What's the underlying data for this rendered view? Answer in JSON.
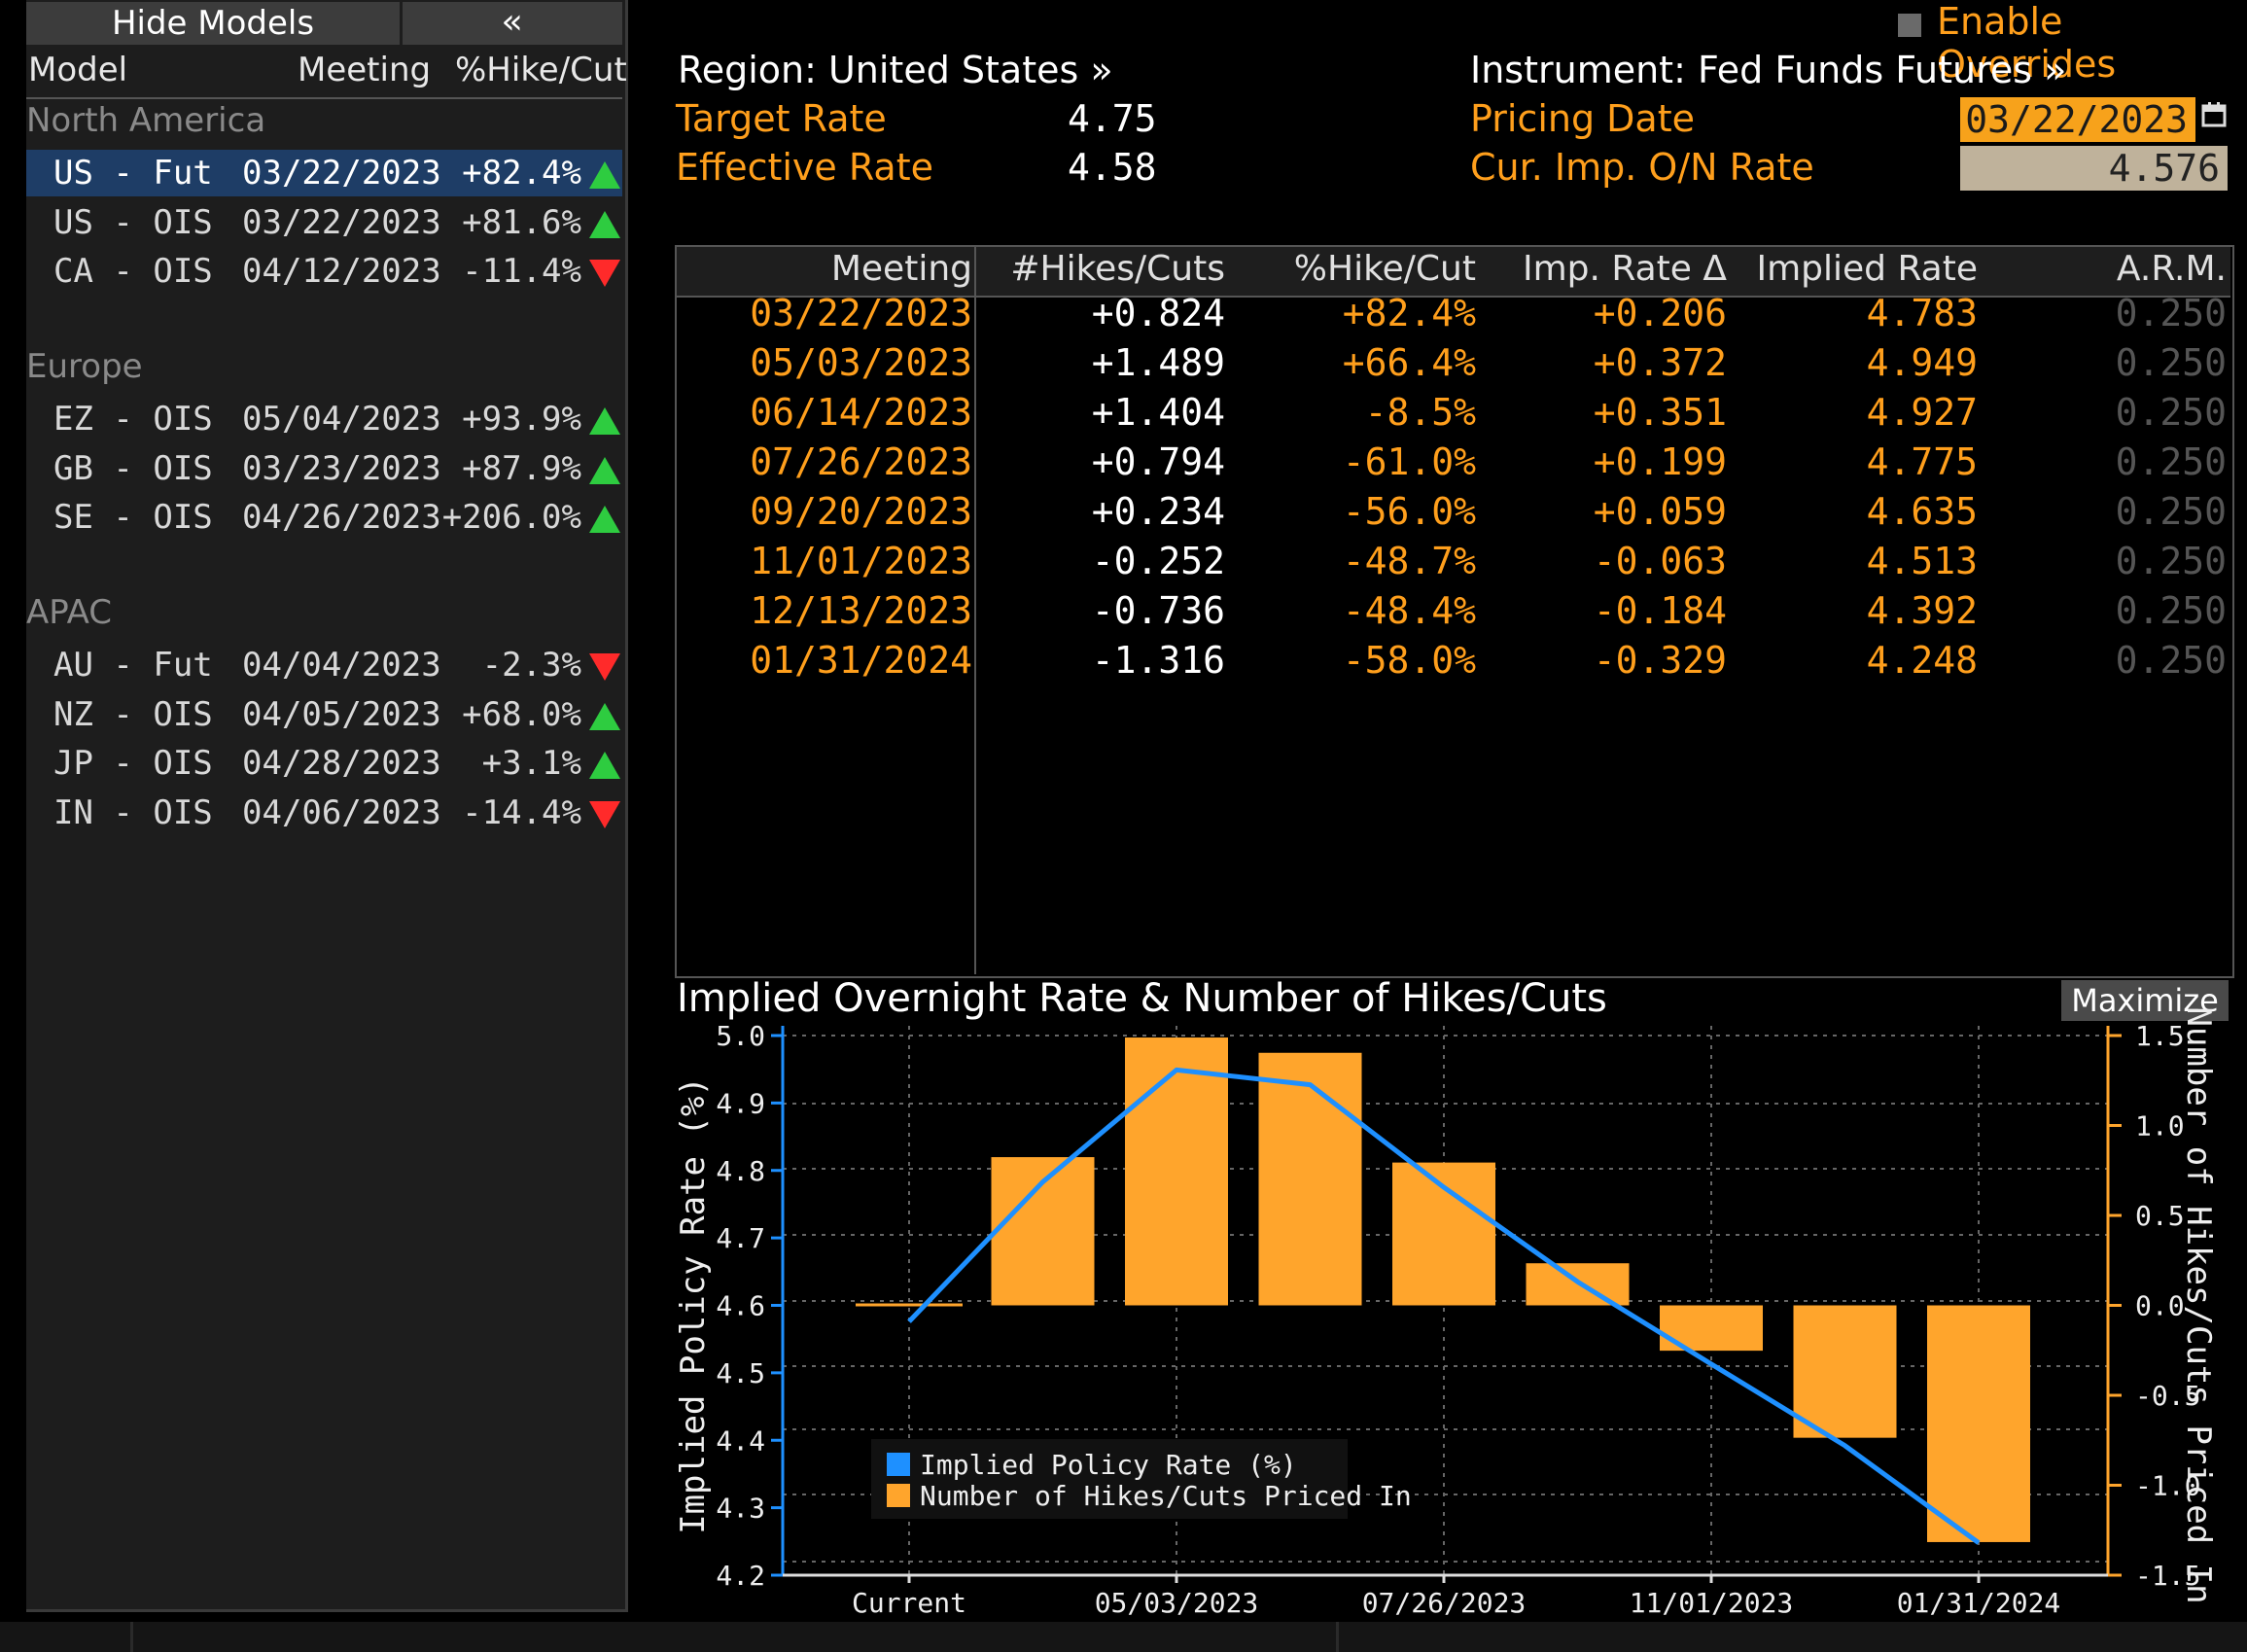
{
  "models_panel": {
    "hide_button": "Hide Models",
    "collapse_icon": "«",
    "headers": {
      "model": "Model",
      "meeting": "Meeting",
      "pct": "%Hike/Cut"
    },
    "regions": [
      {
        "name": "North America",
        "rows": [
          {
            "model": "US - Fut",
            "date": "03/22/2023",
            "pct": "+82.4%",
            "dir": "up",
            "selected": true
          },
          {
            "model": "US - OIS",
            "date": "03/22/2023",
            "pct": "+81.6%",
            "dir": "up"
          },
          {
            "model": "CA - OIS",
            "date": "04/12/2023",
            "pct": "-11.4%",
            "dir": "down"
          }
        ]
      },
      {
        "name": "Europe",
        "rows": [
          {
            "model": "EZ - OIS",
            "date": "05/04/2023",
            "pct": "+93.9%",
            "dir": "up"
          },
          {
            "model": "GB - OIS",
            "date": "03/23/2023",
            "pct": "+87.9%",
            "dir": "up"
          },
          {
            "model": "SE - OIS",
            "date": "04/26/2023",
            "pct": "+206.0%",
            "dir": "up"
          }
        ]
      },
      {
        "name": "APAC",
        "rows": [
          {
            "model": "AU - Fut",
            "date": "04/04/2023",
            "pct": "-2.3%",
            "dir": "down"
          },
          {
            "model": "NZ - OIS",
            "date": "04/05/2023",
            "pct": "+68.0%",
            "dir": "up"
          },
          {
            "model": "JP - OIS",
            "date": "04/28/2023",
            "pct": "+3.1%",
            "dir": "up"
          },
          {
            "model": "IN - OIS",
            "date": "04/06/2023",
            "pct": "-14.4%",
            "dir": "down"
          }
        ]
      }
    ]
  },
  "header": {
    "override_label": "Enable Overrides",
    "region": "Region: United States »",
    "instrument": "Instrument: Fed Funds Futures »",
    "target_rate_label": "Target Rate",
    "target_rate_value": "4.75",
    "effective_rate_label": "Effective Rate",
    "effective_rate_value": "4.58",
    "pricing_date_label": "Pricing Date",
    "pricing_date_value": "03/22/2023",
    "imp_rate_label": "Cur. Imp. O/N Rate",
    "imp_rate_value": "4.576"
  },
  "table": {
    "headers": [
      "Meeting",
      "#Hikes/Cuts",
      "%Hike/Cut",
      "Imp. Rate Δ",
      "Implied Rate",
      "A.R.M."
    ],
    "rows": [
      [
        "03/22/2023",
        "+0.824",
        "+82.4%",
        "+0.206",
        "4.783",
        "0.250"
      ],
      [
        "05/03/2023",
        "+1.489",
        "+66.4%",
        "+0.372",
        "4.949",
        "0.250"
      ],
      [
        "06/14/2023",
        "+1.404",
        "-8.5%",
        "+0.351",
        "4.927",
        "0.250"
      ],
      [
        "07/26/2023",
        "+0.794",
        "-61.0%",
        "+0.199",
        "4.775",
        "0.250"
      ],
      [
        "09/20/2023",
        "+0.234",
        "-56.0%",
        "+0.059",
        "4.635",
        "0.250"
      ],
      [
        "11/01/2023",
        "-0.252",
        "-48.7%",
        "-0.063",
        "4.513",
        "0.250"
      ],
      [
        "12/13/2023",
        "-0.736",
        "-48.4%",
        "-0.184",
        "4.392",
        "0.250"
      ],
      [
        "01/31/2024",
        "-1.316",
        "-58.0%",
        "-0.329",
        "4.248",
        "0.250"
      ]
    ]
  },
  "chart": {
    "title": "Implied Overnight Rate & Number of Hikes/Cuts",
    "maximize_label": "Maximize",
    "colors": {
      "line": "#1e90ff",
      "bar": "#ffa52c",
      "axis": "#ffa52c",
      "grid": "#666666"
    }
  },
  "chart_data": {
    "type": "bar",
    "categories": [
      "Current",
      "03/22/2023",
      "05/03/2023",
      "06/14/2023",
      "07/26/2023",
      "09/20/2023",
      "11/01/2023",
      "12/13/2023",
      "01/31/2024"
    ],
    "x_tick_labels": [
      "Current",
      "05/03/2023",
      "07/26/2023",
      "11/01/2023",
      "01/31/2024"
    ],
    "series": [
      {
        "name": "Implied Policy Rate (%)",
        "type": "line",
        "axis": "left",
        "values": [
          4.576,
          4.783,
          4.949,
          4.927,
          4.775,
          4.635,
          4.513,
          4.392,
          4.248
        ]
      },
      {
        "name": "Number of Hikes/Cuts Priced In",
        "type": "bar",
        "axis": "right",
        "values": [
          0,
          0.824,
          1.489,
          1.404,
          0.794,
          0.234,
          -0.252,
          -0.736,
          -1.316
        ]
      }
    ],
    "ylabel": "Implied Policy Rate (%)",
    "y2label": "Number of Hikes/Cuts Priced In",
    "ylim": [
      4.2,
      5.0
    ],
    "y2lim": [
      -1.5,
      1.5
    ],
    "yticks": [
      "5.0",
      "4.9",
      "4.8",
      "4.7",
      "4.6",
      "4.5",
      "4.4",
      "4.3",
      "4.2"
    ],
    "y2ticks": [
      "1.5",
      "1.0",
      "0.5",
      "0.0",
      "-0.5",
      "-1.0",
      "-1.5"
    ],
    "grid": true,
    "legend_position": "bottom-left"
  }
}
